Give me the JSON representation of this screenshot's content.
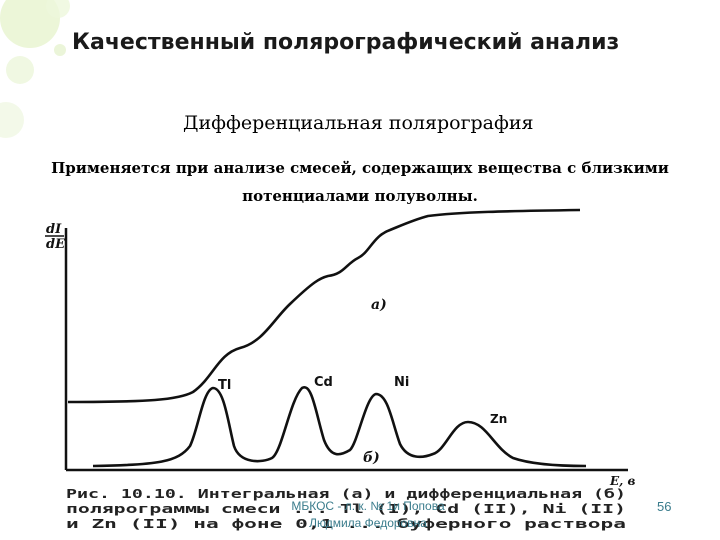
{
  "slide": {
    "title": "Качественный полярографический анализ",
    "subtitle": "Дифференциальная полярография",
    "description_line1": "Применяется при анализе смесей, содержащих вещества с близкими",
    "description_line2": "потенциалами полуволны.",
    "page_number": "56",
    "footer_line1": "МБКОС - л. к. № 1и Попова",
    "footer_line2": "Людмила Федоровна"
  },
  "figure": {
    "y_axis_label_top": "dI",
    "y_axis_label_bottom": "dE",
    "x_axis_label": "E, в",
    "curve_a_label": "а)",
    "curve_b_label": "б)",
    "peak_labels": [
      "Tl",
      "Cd",
      "Ni",
      "Zn"
    ],
    "caption_line1": "Рис. 10.10. Интегральная (а) и дифференциальная (б)",
    "caption_line2": "полярограммы смеси ... Tl (I), Cd (II), Ni (II)",
    "caption_line3": "и Zn (II) на фоне 0,1 ... буферного раствора"
  },
  "colors": {
    "footer_text": "#3a7c8c",
    "decoration_green": "#d8ecb8"
  }
}
